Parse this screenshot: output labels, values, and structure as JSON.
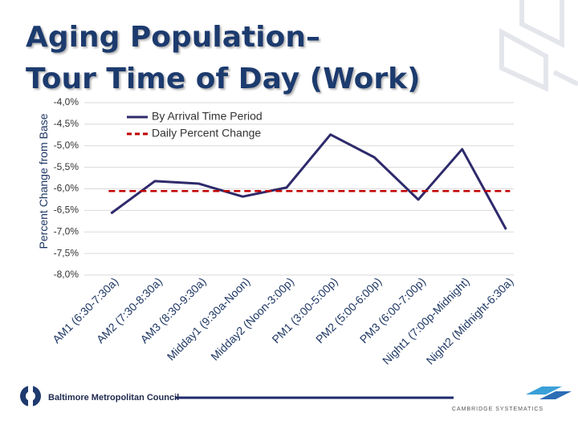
{
  "chart_data": {
    "type": "line",
    "title": [
      "Aging Population–",
      "Tour Time of Day (Work)"
    ],
    "y_label": "Percent Change from Base",
    "categories": [
      "AM1 (6:30-7:30a)",
      "AM2 (7:30-8:30a)",
      "AM3 (8:30-9:30a)",
      "Midday1 (9:30a-Noon)",
      "Midday2 (Noon-3:00p)",
      "PM1 (3:00-5:00p)",
      "PM2 (5:00-6:00p)",
      "PM3 (6:00-7:00p)",
      "Night1 (7:00p-Midnight)",
      "Night2 (Midnight-6:30a)"
    ],
    "series": [
      {
        "name": "By Arrival Time Period",
        "color": "#2e2a6b",
        "dash": false,
        "values": [
          -6.57,
          -5.82,
          -5.88,
          -6.18,
          -5.97,
          -4.74,
          -5.27,
          -6.25,
          -5.08,
          -6.94
        ]
      },
      {
        "name": "Daily Percent Change",
        "color": "#c00000",
        "dash": true,
        "values": [
          -6.05,
          -6.05,
          -6.05,
          -6.05,
          -6.05,
          -6.05,
          -6.05,
          -6.05,
          -6.05,
          -6.05
        ]
      }
    ],
    "ylim": [
      -8,
      -4
    ],
    "yticks": [
      {
        "value": -4,
        "label": "-4,0%"
      },
      {
        "value": -4.5,
        "label": "-4,5%"
      },
      {
        "value": -5,
        "label": "-5,0%"
      },
      {
        "value": -5.5,
        "label": "-5,5%"
      },
      {
        "value": -6,
        "label": "-6,0%"
      },
      {
        "value": -6.5,
        "label": "-6,5%"
      },
      {
        "value": -7,
        "label": "-7,0%"
      },
      {
        "value": -7.5,
        "label": "-7,5%"
      },
      {
        "value": -8,
        "label": "-8,0%"
      }
    ],
    "grid": true,
    "legend": "top-left"
  },
  "footer": {
    "left": "Baltimore Metropolitan Council",
    "right": "CAMBRIDGE SYSTEMATICS"
  }
}
